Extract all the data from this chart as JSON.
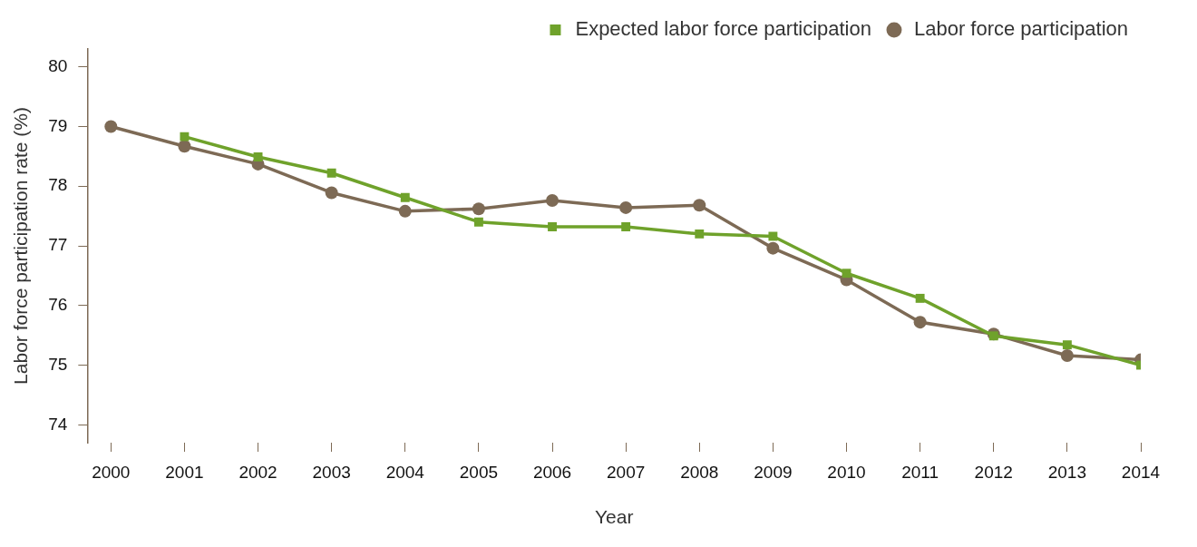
{
  "chart_data": {
    "type": "line",
    "xlabel": "Year",
    "ylabel": "Labor force participation rate (%)",
    "x": [
      2000,
      2001,
      2002,
      2003,
      2004,
      2005,
      2006,
      2007,
      2008,
      2009,
      2010,
      2011,
      2012,
      2013,
      2014
    ],
    "xlim": [
      1999.68,
      2014
    ],
    "xticks": [
      2000,
      2001,
      2002,
      2003,
      2004,
      2005,
      2006,
      2007,
      2008,
      2009,
      2010,
      2011,
      2012,
      2013,
      2014
    ],
    "ylim": [
      73.7,
      80.3
    ],
    "yticks": [
      74,
      75,
      76,
      77,
      78,
      79,
      80
    ],
    "series": [
      {
        "name": "Labor force participation",
        "color": "#7d6a55",
        "marker": "circle",
        "values": [
          79.0,
          78.67,
          78.37,
          77.89,
          77.58,
          77.62,
          77.76,
          77.64,
          77.68,
          76.96,
          76.43,
          75.72,
          75.52,
          75.16,
          75.09
        ]
      },
      {
        "name": "Expected labor force participation",
        "color": "#6fa22b",
        "marker": "square",
        "values": [
          null,
          78.83,
          78.49,
          78.22,
          77.81,
          77.4,
          77.32,
          77.32,
          77.2,
          77.16,
          76.54,
          76.12,
          75.49,
          75.34,
          75.0
        ]
      }
    ],
    "grid": false,
    "legend": "top right"
  }
}
